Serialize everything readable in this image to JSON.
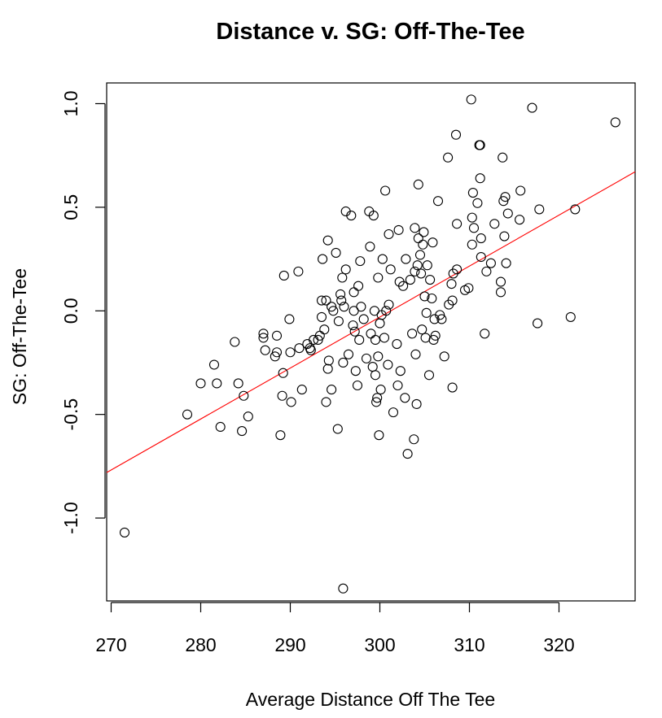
{
  "chart_data": {
    "type": "scatter",
    "title": "Distance v. SG: Off-The-Tee",
    "xlabel": "Average Distance Off The Tee",
    "ylabel": "SG: Off-The-Tee",
    "xlim": [
      269.5,
      328.5
    ],
    "ylim": [
      -1.4,
      1.1
    ],
    "x_ticks": [
      270,
      280,
      290,
      300,
      310,
      320
    ],
    "x_tick_labels": [
      "270",
      "280",
      "290",
      "300",
      "310",
      "320"
    ],
    "y_ticks": [
      -1.0,
      -0.5,
      0.0,
      0.5,
      1.0
    ],
    "y_tick_labels": [
      "-1.0",
      "-0.5",
      "0.0",
      "0.5",
      "1.0"
    ],
    "trend_line": {
      "slope": 0.0246,
      "intercept": -7.41,
      "color": "#ff0000"
    },
    "points": [
      [
        271.5,
        -1.07
      ],
      [
        278.5,
        -0.5
      ],
      [
        280.0,
        -0.35
      ],
      [
        281.5,
        -0.26
      ],
      [
        281.8,
        -0.35
      ],
      [
        282.2,
        -0.56
      ],
      [
        283.8,
        -0.15
      ],
      [
        284.2,
        -0.35
      ],
      [
        284.6,
        -0.58
      ],
      [
        284.8,
        -0.41
      ],
      [
        285.3,
        -0.51
      ],
      [
        287.0,
        -0.11
      ],
      [
        287.0,
        -0.13
      ],
      [
        287.2,
        -0.19
      ],
      [
        288.3,
        -0.22
      ],
      [
        288.5,
        -0.12
      ],
      [
        288.5,
        -0.2
      ],
      [
        288.9,
        -0.6
      ],
      [
        289.1,
        -0.41
      ],
      [
        289.2,
        -0.3
      ],
      [
        289.3,
        0.17
      ],
      [
        289.9,
        -0.04
      ],
      [
        290.0,
        -0.2
      ],
      [
        290.1,
        -0.44
      ],
      [
        290.9,
        0.19
      ],
      [
        291.0,
        -0.18
      ],
      [
        291.3,
        -0.38
      ],
      [
        291.9,
        -0.16
      ],
      [
        292.2,
        -0.18
      ],
      [
        292.3,
        -0.19
      ],
      [
        292.6,
        -0.14
      ],
      [
        293.1,
        -0.14
      ],
      [
        293.3,
        -0.12
      ],
      [
        293.5,
        -0.03
      ],
      [
        293.5,
        0.05
      ],
      [
        293.6,
        0.25
      ],
      [
        293.8,
        -0.09
      ],
      [
        294.0,
        0.05
      ],
      [
        294.0,
        -0.44
      ],
      [
        294.2,
        -0.28
      ],
      [
        294.2,
        0.34
      ],
      [
        294.3,
        -0.24
      ],
      [
        294.6,
        0.02
      ],
      [
        294.6,
        -0.38
      ],
      [
        294.8,
        -0.0
      ],
      [
        295.1,
        0.28
      ],
      [
        295.3,
        -0.57
      ],
      [
        295.4,
        -0.05
      ],
      [
        295.6,
        0.08
      ],
      [
        295.7,
        0.05
      ],
      [
        295.8,
        0.16
      ],
      [
        295.9,
        -1.34
      ],
      [
        295.9,
        -0.25
      ],
      [
        296.0,
        0.02
      ],
      [
        296.2,
        0.2
      ],
      [
        296.2,
        0.48
      ],
      [
        296.5,
        -0.21
      ],
      [
        296.8,
        0.46
      ],
      [
        297.0,
        -0.07
      ],
      [
        297.1,
        0.0
      ],
      [
        297.1,
        0.09
      ],
      [
        297.2,
        -0.1
      ],
      [
        297.3,
        -0.29
      ],
      [
        297.5,
        -0.36
      ],
      [
        297.6,
        0.12
      ],
      [
        297.7,
        -0.14
      ],
      [
        297.8,
        0.24
      ],
      [
        297.9,
        0.02
      ],
      [
        298.2,
        -0.04
      ],
      [
        298.5,
        -0.23
      ],
      [
        298.8,
        0.48
      ],
      [
        298.9,
        0.31
      ],
      [
        299.0,
        -0.11
      ],
      [
        299.2,
        -0.27
      ],
      [
        299.3,
        0.46
      ],
      [
        299.4,
        0.0
      ],
      [
        299.5,
        -0.14
      ],
      [
        299.5,
        -0.31
      ],
      [
        299.6,
        -0.44
      ],
      [
        299.7,
        -0.42
      ],
      [
        299.8,
        -0.22
      ],
      [
        299.8,
        0.16
      ],
      [
        299.9,
        -0.6
      ],
      [
        300.0,
        -0.06
      ],
      [
        300.1,
        -0.38
      ],
      [
        300.2,
        -0.02
      ],
      [
        300.3,
        0.25
      ],
      [
        300.5,
        -0.13
      ],
      [
        300.6,
        0.58
      ],
      [
        300.7,
        0.0
      ],
      [
        300.9,
        -0.26
      ],
      [
        301.0,
        0.03
      ],
      [
        301.0,
        0.37
      ],
      [
        301.2,
        0.2
      ],
      [
        301.5,
        -0.49
      ],
      [
        301.9,
        -0.16
      ],
      [
        302.0,
        -0.36
      ],
      [
        302.1,
        0.39
      ],
      [
        302.2,
        0.14
      ],
      [
        302.3,
        -0.29
      ],
      [
        302.6,
        0.12
      ],
      [
        302.8,
        -0.42
      ],
      [
        302.9,
        0.25
      ],
      [
        303.1,
        -0.69
      ],
      [
        303.4,
        0.15
      ],
      [
        303.6,
        -0.11
      ],
      [
        303.8,
        -0.62
      ],
      [
        303.9,
        0.19
      ],
      [
        303.9,
        0.4
      ],
      [
        304.0,
        -0.21
      ],
      [
        304.1,
        -0.45
      ],
      [
        304.2,
        0.22
      ],
      [
        304.3,
        0.61
      ],
      [
        304.3,
        0.35
      ],
      [
        304.5,
        0.27
      ],
      [
        304.6,
        0.18
      ],
      [
        304.7,
        -0.09
      ],
      [
        304.8,
        0.32
      ],
      [
        304.9,
        0.38
      ],
      [
        305.0,
        0.07
      ],
      [
        305.1,
        -0.13
      ],
      [
        305.2,
        -0.01
      ],
      [
        305.3,
        0.22
      ],
      [
        305.5,
        -0.31
      ],
      [
        305.6,
        0.15
      ],
      [
        305.8,
        0.06
      ],
      [
        305.9,
        0.33
      ],
      [
        306.0,
        -0.14
      ],
      [
        306.1,
        -0.04
      ],
      [
        306.2,
        -0.12
      ],
      [
        306.5,
        0.53
      ],
      [
        306.7,
        -0.02
      ],
      [
        306.9,
        -0.04
      ],
      [
        307.2,
        -0.22
      ],
      [
        307.6,
        0.74
      ],
      [
        307.7,
        0.03
      ],
      [
        308.0,
        0.13
      ],
      [
        308.1,
        0.05
      ],
      [
        308.1,
        -0.37
      ],
      [
        308.2,
        0.18
      ],
      [
        308.5,
        0.85
      ],
      [
        308.6,
        0.2
      ],
      [
        308.6,
        0.42
      ],
      [
        309.5,
        0.1
      ],
      [
        309.9,
        0.11
      ],
      [
        310.2,
        1.02
      ],
      [
        310.3,
        0.45
      ],
      [
        310.3,
        0.32
      ],
      [
        310.4,
        0.57
      ],
      [
        310.5,
        0.4
      ],
      [
        310.9,
        0.52
      ],
      [
        311.1,
        0.8
      ],
      [
        311.2,
        0.8
      ],
      [
        311.2,
        0.64
      ],
      [
        311.3,
        0.35
      ],
      [
        311.3,
        0.26
      ],
      [
        311.7,
        -0.11
      ],
      [
        311.9,
        0.19
      ],
      [
        312.4,
        0.23
      ],
      [
        312.8,
        0.42
      ],
      [
        313.5,
        0.14
      ],
      [
        313.5,
        0.09
      ],
      [
        313.7,
        0.74
      ],
      [
        313.8,
        0.53
      ],
      [
        313.9,
        0.36
      ],
      [
        314.0,
        0.55
      ],
      [
        314.1,
        0.23
      ],
      [
        314.3,
        0.47
      ],
      [
        315.6,
        0.44
      ],
      [
        315.7,
        0.58
      ],
      [
        317.0,
        0.98
      ],
      [
        317.6,
        -0.06
      ],
      [
        317.8,
        0.49
      ],
      [
        321.3,
        -0.03
      ],
      [
        321.8,
        0.49
      ],
      [
        326.3,
        0.91
      ]
    ]
  }
}
